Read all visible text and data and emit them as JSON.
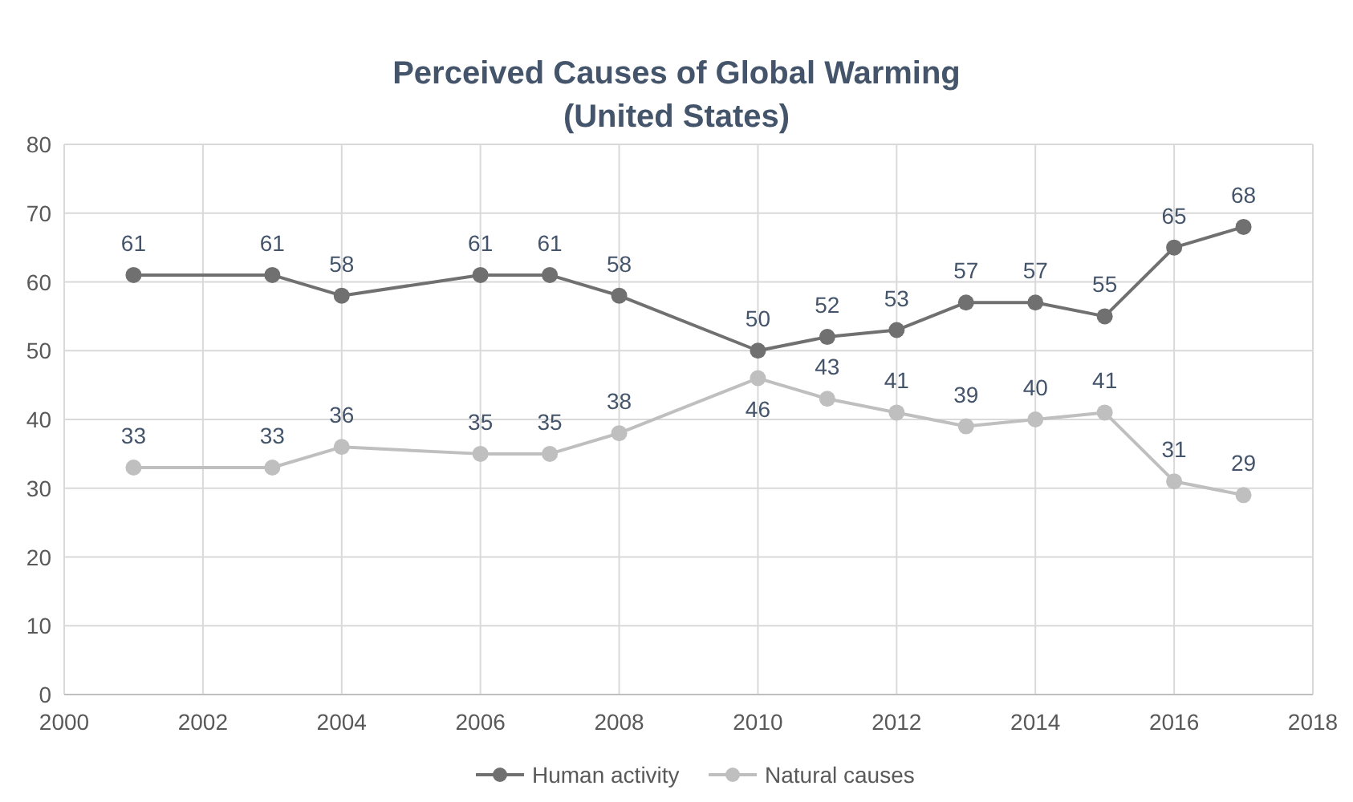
{
  "chart_data": {
    "type": "line",
    "title": "Perceived Causes of Global Warming\n(United States)",
    "x": [
      2001,
      2003,
      2004,
      2006,
      2007,
      2008,
      2010,
      2011,
      2012,
      2013,
      2014,
      2015,
      2016,
      2017
    ],
    "series": [
      {
        "name": "Human activity",
        "color": "#707070",
        "values": [
          61,
          61,
          58,
          61,
          61,
          58,
          50,
          52,
          53,
          57,
          57,
          55,
          65,
          68
        ]
      },
      {
        "name": "Natural causes",
        "color": "#bfbfbf",
        "values": [
          33,
          33,
          36,
          35,
          35,
          38,
          46,
          43,
          41,
          39,
          40,
          41,
          31,
          29
        ]
      }
    ],
    "xlim": [
      2000,
      2018
    ],
    "xticks": [
      2000,
      2002,
      2004,
      2006,
      2008,
      2010,
      2012,
      2014,
      2016,
      2018
    ],
    "ylim": [
      0,
      80
    ],
    "yticks": [
      0,
      10,
      20,
      30,
      40,
      50,
      60,
      70,
      80
    ],
    "grid": true,
    "legend": "bottom",
    "marker": "circle",
    "line_style": "solid",
    "data_labels": true
  }
}
